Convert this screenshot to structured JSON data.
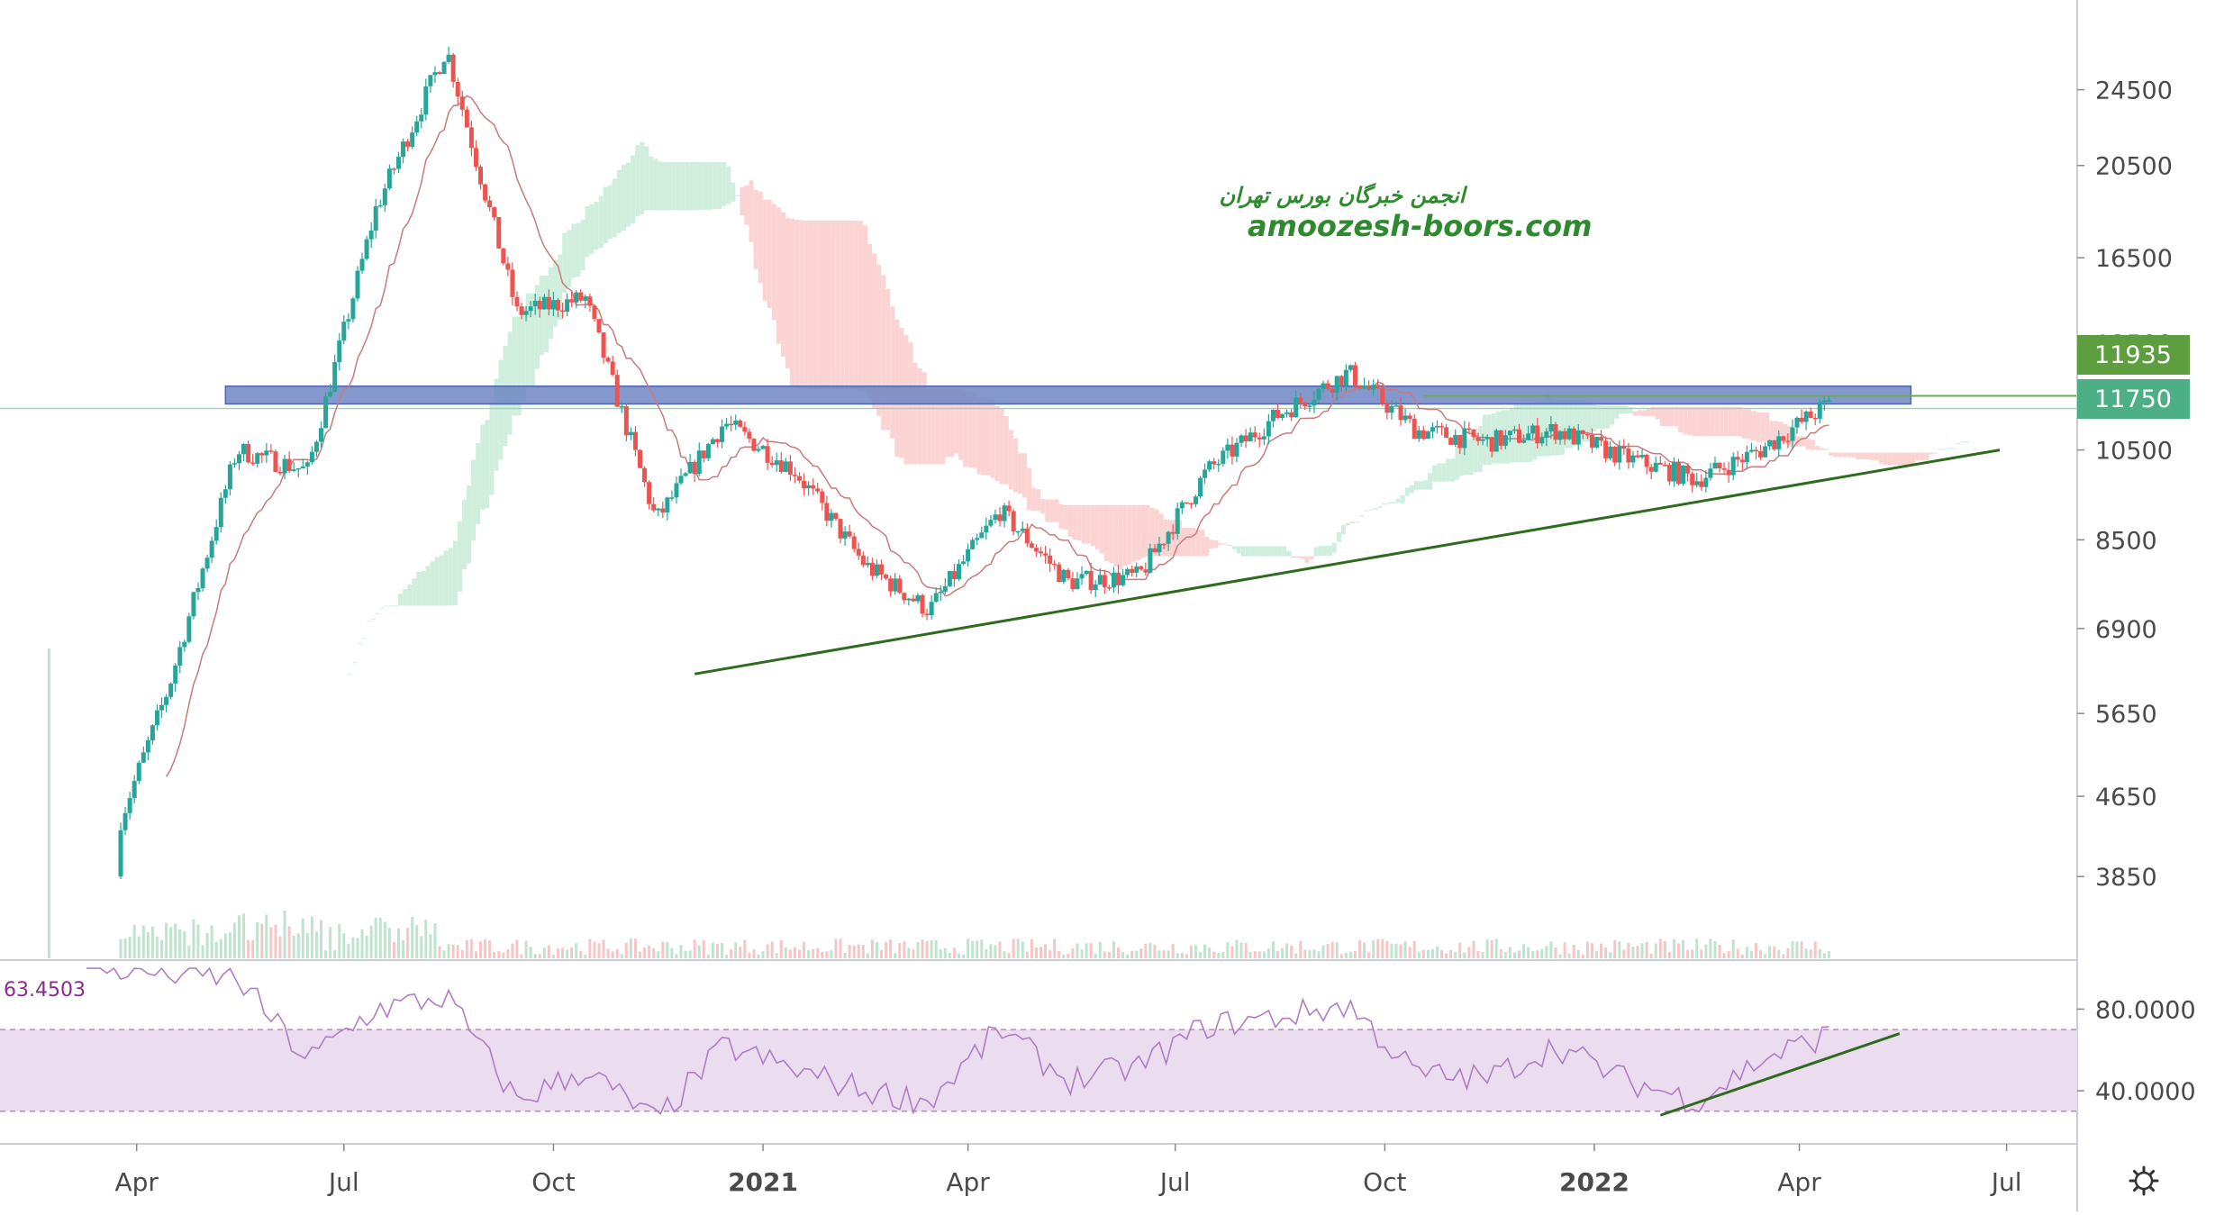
{
  "colors": {
    "up": "#26a69a",
    "down": "#ef5350",
    "up_soft": "#7fc8a0",
    "down_soft": "#f08a8a",
    "trend": "#2f6b1f",
    "resistance_band": "#6f86c4",
    "cloud_green": "#cfeede",
    "cloud_red": "#fbd3d3",
    "kijun": "#c97a7a",
    "rsi_line": "#b07cc6",
    "rsi_band": "#ecdcef",
    "watermark_green": "#2f8a2f",
    "axis_text": "#4a4a4a",
    "label_dark_green": "#5d9f3e",
    "label_teal": "#4caf86"
  },
  "watermark": {
    "line1": "انجمن خبرگان بورس تهران",
    "line2": "amoozesh-boors.com"
  },
  "price_labels": {
    "resistance": "11935",
    "last": "11750"
  },
  "rsi_value_label": "63.4503",
  "chart_data": {
    "type": "candlestick",
    "price_axis": {
      "scale": "log",
      "ticks": [
        "24500",
        "20500",
        "16500",
        "13500",
        "10500",
        "8500",
        "6900",
        "5650",
        "4650",
        "3850"
      ],
      "range": [
        3300,
        29000
      ]
    },
    "rsi_axis": {
      "ticks": [
        "80.0000",
        "40.0000"
      ],
      "range": [
        14,
        104
      ],
      "band": [
        30,
        70
      ]
    },
    "time_axis": {
      "labels": [
        "Apr",
        "Jul",
        "Oct",
        "2021",
        "Apr",
        "Jul",
        "Oct",
        "2022",
        "Apr",
        "Jul"
      ],
      "bold": [
        false,
        false,
        false,
        true,
        false,
        false,
        false,
        true,
        false,
        false
      ]
    },
    "series": [
      {
        "kind": "price_anchors_month_close",
        "points": [
          [
            "2020-03",
            3800
          ],
          [
            "2020-04",
            6000
          ],
          [
            "2020-05",
            10500
          ],
          [
            "2020-06",
            10000
          ],
          [
            "2020-07",
            18500
          ],
          [
            "2020-08",
            27000
          ],
          [
            "2020-09",
            14500
          ],
          [
            "2020-10",
            15000
          ],
          [
            "2020-11",
            8900
          ],
          [
            "2020-12",
            11200
          ],
          [
            "2021-01",
            10000
          ],
          [
            "2021-02",
            8000
          ],
          [
            "2021-03",
            7200
          ],
          [
            "2021-04",
            9100
          ],
          [
            "2021-05",
            7700
          ],
          [
            "2021-06",
            7800
          ],
          [
            "2021-07",
            10000
          ],
          [
            "2021-08",
            11400
          ],
          [
            "2021-09",
            12600
          ],
          [
            "2021-10",
            11000
          ],
          [
            "2021-11",
            10700
          ],
          [
            "2021-12",
            11000
          ],
          [
            "2022-01",
            10300
          ],
          [
            "2022-02",
            9800
          ],
          [
            "2022-03",
            10500
          ],
          [
            "2022-04",
            11750
          ]
        ]
      },
      {
        "kind": "rsi_anchors",
        "points": [
          [
            "2020-03",
            100
          ],
          [
            "2020-05",
            95
          ],
          [
            "2020-06",
            55
          ],
          [
            "2020-07",
            80
          ],
          [
            "2020-08",
            86
          ],
          [
            "2020-09",
            35
          ],
          [
            "2020-10",
            50
          ],
          [
            "2020-11",
            25
          ],
          [
            "2020-12",
            62
          ],
          [
            "2021-01",
            50
          ],
          [
            "2021-02",
            40
          ],
          [
            "2021-03",
            35
          ],
          [
            "2021-04",
            70
          ],
          [
            "2021-05",
            45
          ],
          [
            "2021-06",
            52
          ],
          [
            "2021-07",
            72
          ],
          [
            "2021-08",
            76
          ],
          [
            "2021-09",
            82
          ],
          [
            "2021-10",
            48
          ],
          [
            "2021-11",
            46
          ],
          [
            "2021-12",
            62
          ],
          [
            "2022-01",
            45
          ],
          [
            "2022-02",
            35
          ],
          [
            "2022-03",
            55
          ],
          [
            "2022-04",
            68
          ]
        ]
      }
    ],
    "annotations": {
      "resistance_zone": [
        11700,
        12200
      ],
      "last_price_line": 11750,
      "support_trendline": [
        [
          "2020-12-02",
          6200
        ],
        [
          "2022-06-28",
          10500
        ]
      ],
      "short_resistance_line": [
        [
          "2021-10-18",
          11750
        ],
        [
          "2022-06-28",
          11750
        ]
      ],
      "rsi_trendline": [
        [
          "2022-01-30",
          28
        ],
        [
          "2022-05-15",
          68
        ]
      ]
    }
  }
}
